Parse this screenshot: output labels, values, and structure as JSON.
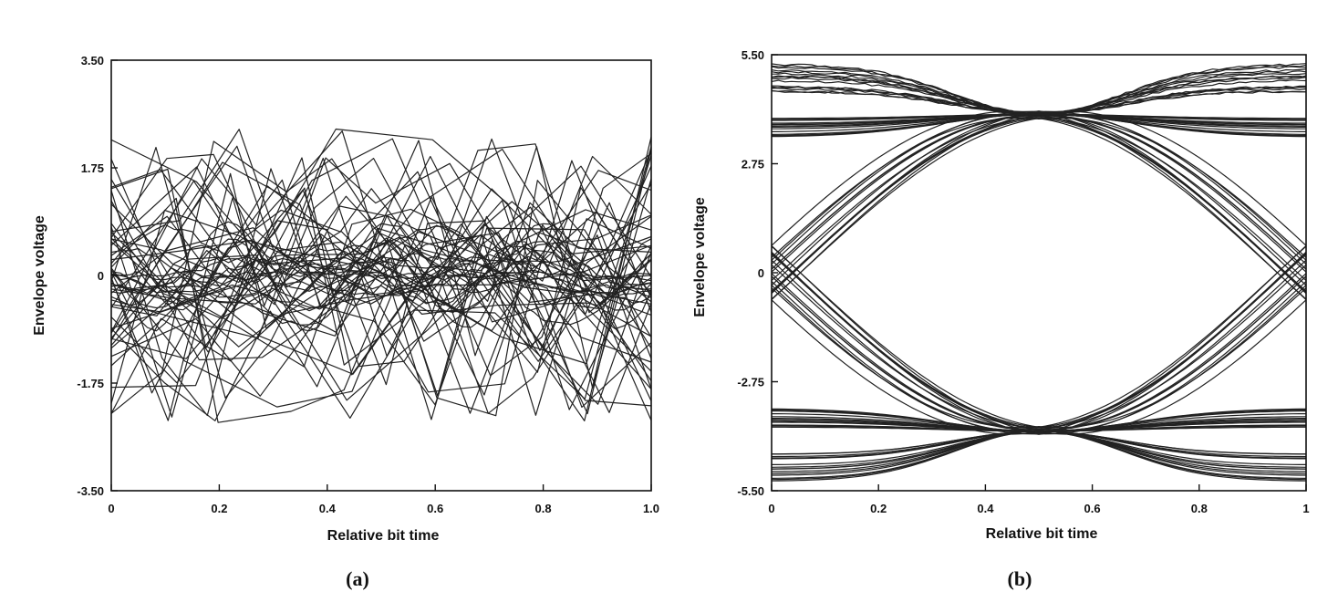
{
  "chart_data": [
    {
      "type": "line",
      "caption": "(a)",
      "xlabel": "Relative bit time",
      "ylabel": "Envelope voltage",
      "xlim": [
        0,
        1.0
      ],
      "ylim": [
        -3.5,
        3.5
      ],
      "x_ticks": [
        "0",
        "0.2",
        "0.4",
        "0.6",
        "0.8",
        "1.0"
      ],
      "y_ticks": [
        "3.50",
        "1.75",
        "0",
        "-1.75",
        "-3.50"
      ],
      "grid": false,
      "description_of_traces": "closed eye diagram: many overlapping traces peaking near 2.5 and dipping near -2.5 with zero crossings throughout the bit interval"
    },
    {
      "type": "line",
      "caption": "(b)",
      "xlabel": "Relative bit time",
      "ylabel": "Envelope voltage",
      "xlim": [
        0,
        1
      ],
      "ylim": [
        -5.5,
        5.5
      ],
      "x_ticks": [
        "0",
        "0.2",
        "0.4",
        "0.6",
        "0.8",
        "1"
      ],
      "y_ticks": [
        "5.50",
        "2.75",
        "0",
        "-2.75",
        "-5.50"
      ],
      "grid": false,
      "description_of_traces": "open eye diagram: rails near +4 to +5.5 and -4 to -5.5, crossings near x=0.5 at about +4 and -4, and near 0 at x=0 and x=1"
    }
  ]
}
